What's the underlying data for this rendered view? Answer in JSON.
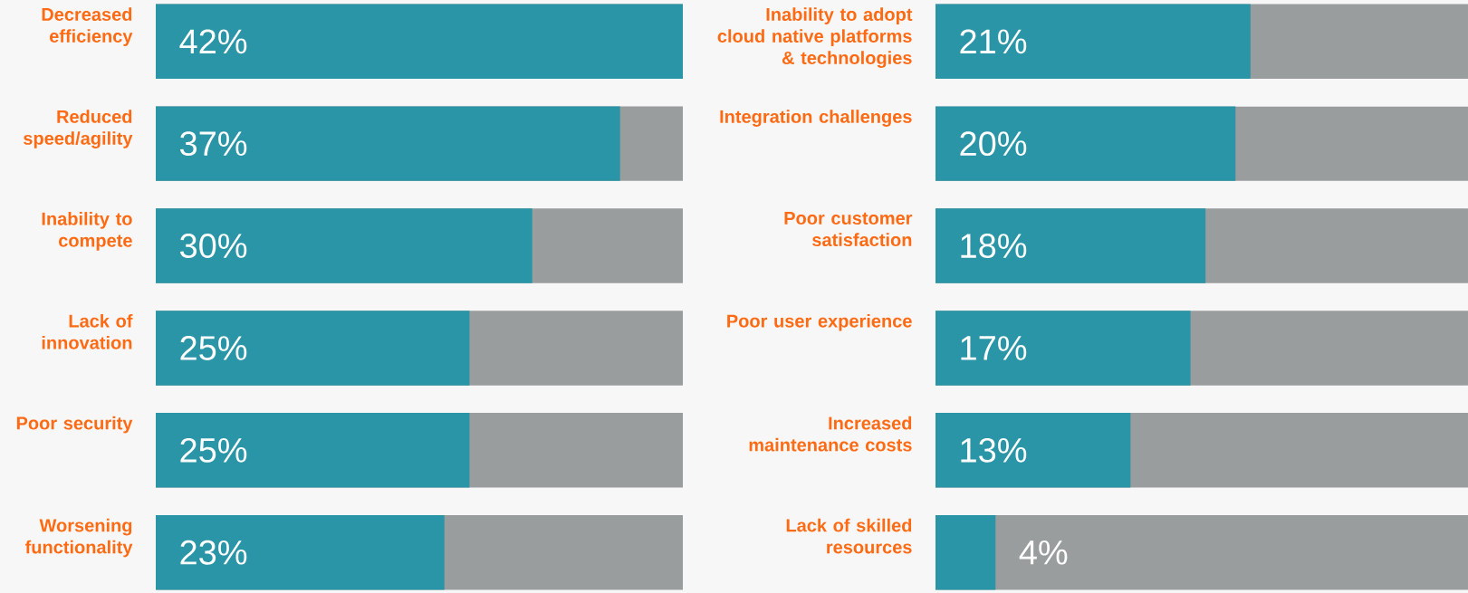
{
  "chart_data": [
    {
      "type": "bar",
      "orientation": "horizontal",
      "categories": [
        "Decreased efficiency",
        "Reduced speed/agility",
        "Inability to compete",
        "Lack of innovation",
        "Poor security",
        "Worsening functionality"
      ],
      "values": [
        42,
        37,
        30,
        25,
        25,
        23
      ],
      "value_labels": [
        "42%",
        "37%",
        "30%",
        "25%",
        "25%",
        "23%"
      ],
      "color": "#2a95a6",
      "xlim": [
        0,
        42
      ],
      "tick_labels": "y"
    },
    {
      "type": "bar",
      "orientation": "horizontal",
      "categories": [
        "Inability to adopt cloud native platforms & technologies",
        "Integration challenges",
        "Poor customer satisfaction",
        "Poor user experience",
        "Increased maintenance costs",
        "Lack of skilled resources"
      ],
      "values": [
        21,
        20,
        18,
        17,
        13,
        4
      ],
      "value_labels": [
        "21%",
        "20%",
        "18%",
        "17%",
        "13%",
        "4%"
      ],
      "color": "#2a95a6",
      "xlim": [
        0,
        35.5
      ],
      "tick_labels": "y"
    }
  ]
}
